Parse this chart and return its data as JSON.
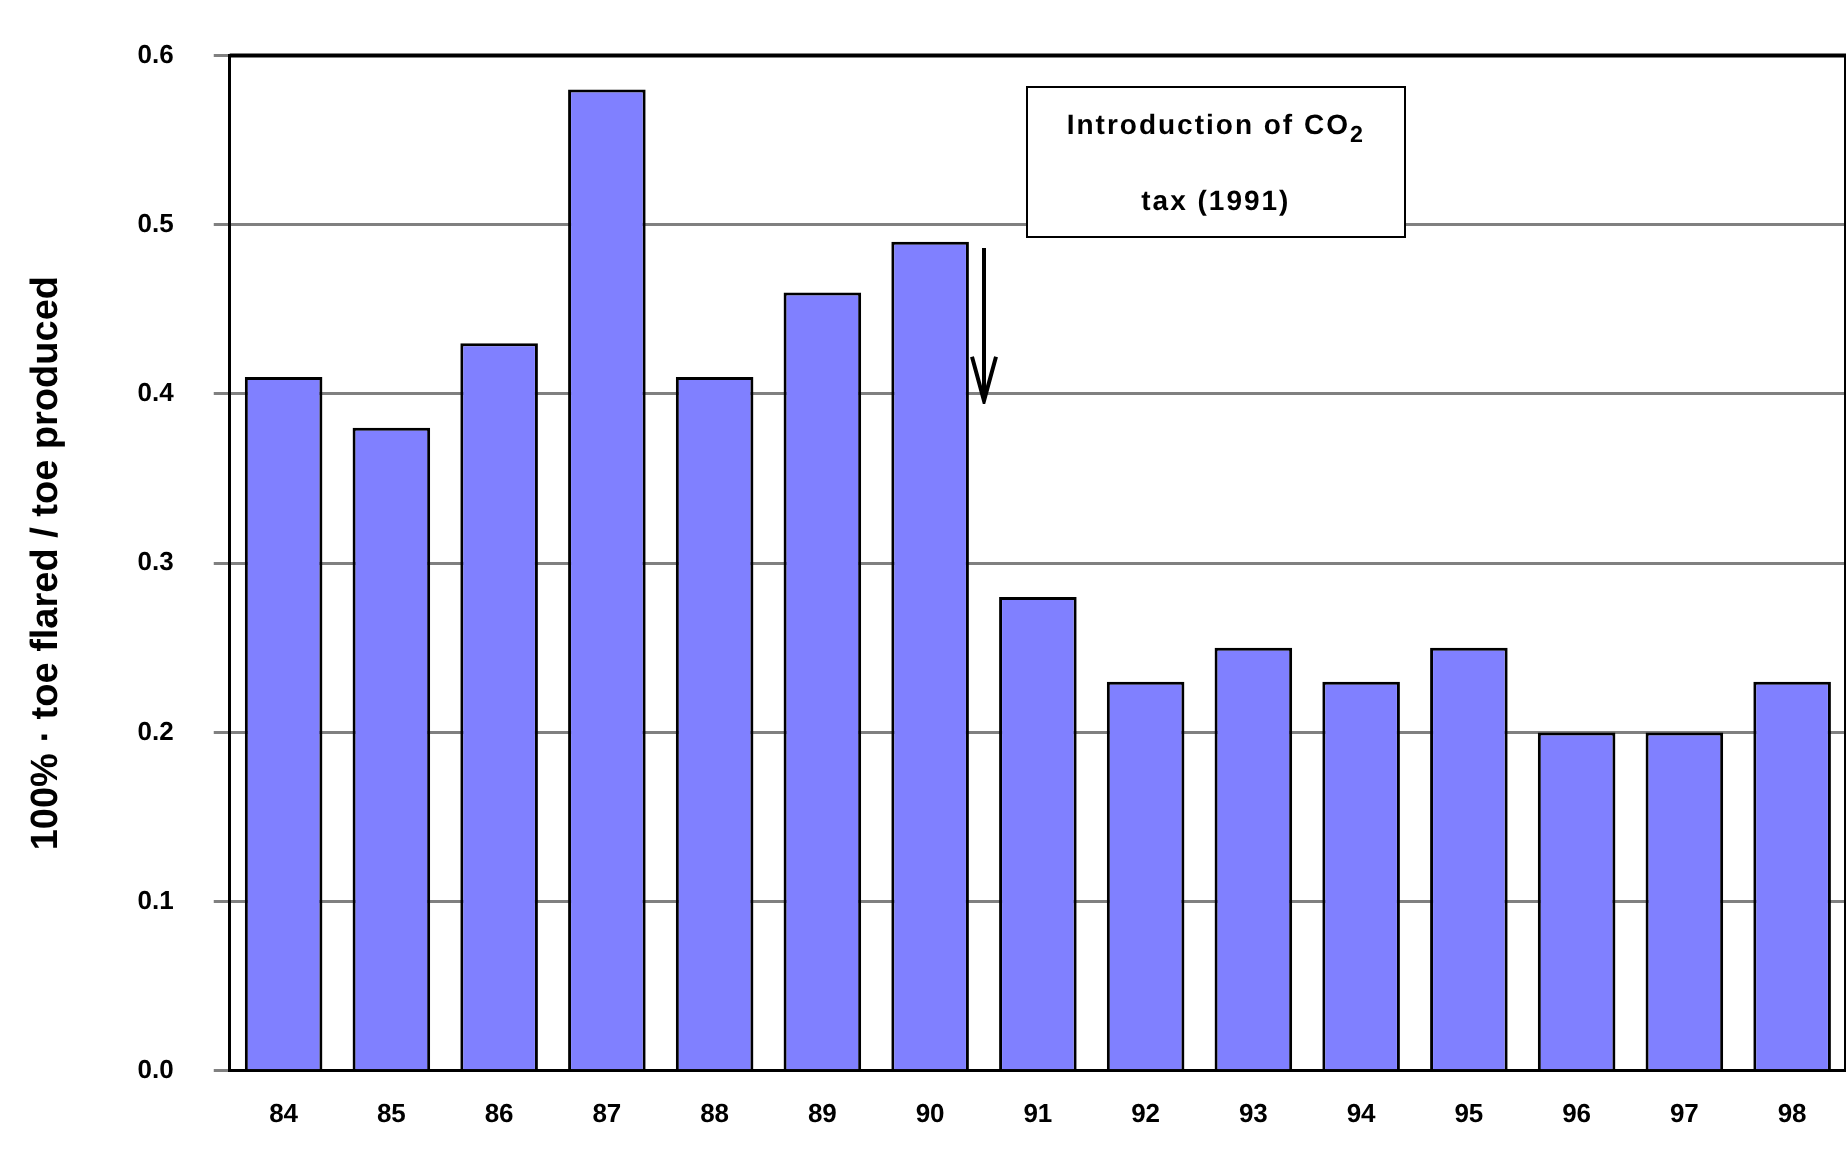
{
  "chart_data": {
    "type": "bar",
    "ylabel": "100% · toe flared / toe produced",
    "categories": [
      "84",
      "85",
      "86",
      "87",
      "88",
      "89",
      "90",
      "91",
      "92",
      "93",
      "94",
      "95",
      "96",
      "97",
      "98"
    ],
    "values": [
      0.41,
      0.38,
      0.43,
      0.58,
      0.41,
      0.46,
      0.49,
      0.28,
      0.23,
      0.25,
      0.23,
      0.25,
      0.2,
      0.2,
      0.23
    ],
    "color": "#8080ff",
    "ylim": [
      0,
      0.6
    ],
    "yticks": [
      {
        "value": 0,
        "label": "0.0"
      },
      0.1,
      0.2,
      0.3,
      0.4,
      0.5,
      0.6
    ],
    "grid": "y",
    "annotations": [
      "Introduction of CO$_{2}$ tax (1991)"
    ]
  }
}
